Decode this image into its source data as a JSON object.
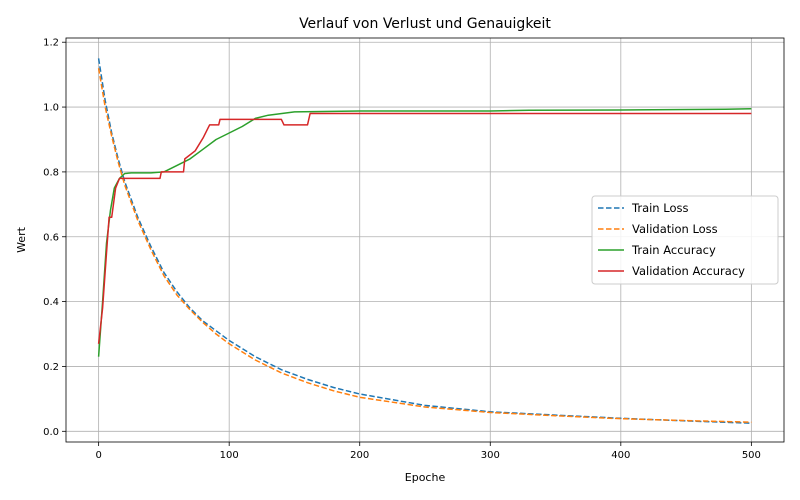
{
  "chart_data": {
    "type": "line",
    "title": "Verlauf von Verlust und Genauigkeit",
    "xlabel": "Epoche",
    "ylabel": "Wert",
    "xlim": [
      -25,
      525
    ],
    "ylim": [
      -0.033,
      1.213
    ],
    "xticks": [
      0,
      100,
      200,
      300,
      400,
      500
    ],
    "yticks": [
      0.0,
      0.2,
      0.4,
      0.6,
      0.8,
      1.0,
      1.2
    ],
    "grid": true,
    "legend": "center-right",
    "series": [
      {
        "name": "Train Loss",
        "color": "#1f77b4",
        "dash": "dashed",
        "x": [
          0,
          5,
          10,
          15,
          20,
          30,
          40,
          50,
          60,
          70,
          80,
          90,
          100,
          120,
          140,
          160,
          180,
          200,
          250,
          300,
          350,
          400,
          450,
          500
        ],
        "y": [
          1.15,
          1.02,
          0.92,
          0.84,
          0.77,
          0.66,
          0.57,
          0.49,
          0.43,
          0.38,
          0.34,
          0.31,
          0.28,
          0.23,
          0.19,
          0.16,
          0.135,
          0.115,
          0.08,
          0.06,
          0.05,
          0.04,
          0.032,
          0.025
        ]
      },
      {
        "name": "Validation Loss",
        "color": "#ff7f0e",
        "dash": "dashed",
        "x": [
          0,
          5,
          10,
          15,
          20,
          30,
          40,
          50,
          60,
          70,
          80,
          90,
          100,
          120,
          140,
          160,
          180,
          200,
          250,
          300,
          350,
          400,
          450,
          500
        ],
        "y": [
          1.12,
          1.0,
          0.91,
          0.83,
          0.76,
          0.65,
          0.56,
          0.48,
          0.42,
          0.375,
          0.335,
          0.3,
          0.27,
          0.22,
          0.18,
          0.15,
          0.125,
          0.105,
          0.075,
          0.058,
          0.048,
          0.039,
          0.033,
          0.028
        ]
      },
      {
        "name": "Train Accuracy",
        "color": "#2ca02c",
        "dash": "solid",
        "x": [
          0,
          3,
          6,
          9,
          12,
          16,
          20,
          25,
          30,
          40,
          50,
          60,
          70,
          80,
          90,
          100,
          110,
          120,
          130,
          150,
          200,
          300,
          330,
          400,
          480,
          500
        ],
        "y": [
          0.23,
          0.4,
          0.58,
          0.68,
          0.75,
          0.78,
          0.795,
          0.797,
          0.797,
          0.797,
          0.8,
          0.82,
          0.84,
          0.87,
          0.9,
          0.92,
          0.94,
          0.965,
          0.975,
          0.985,
          0.988,
          0.988,
          0.99,
          0.991,
          0.993,
          0.995
        ]
      },
      {
        "name": "Validation Accuracy",
        "color": "#d62728",
        "dash": "solid",
        "x": [
          0,
          3,
          6,
          8,
          10,
          13,
          16,
          19,
          25,
          47,
          48,
          65,
          66,
          74,
          80,
          85,
          92,
          93,
          140,
          142,
          160,
          162,
          300,
          400,
          500
        ],
        "y": [
          0.27,
          0.38,
          0.55,
          0.66,
          0.66,
          0.75,
          0.78,
          0.78,
          0.78,
          0.78,
          0.8,
          0.8,
          0.84,
          0.865,
          0.905,
          0.945,
          0.945,
          0.962,
          0.962,
          0.945,
          0.945,
          0.98,
          0.98,
          0.98,
          0.98
        ]
      }
    ]
  }
}
